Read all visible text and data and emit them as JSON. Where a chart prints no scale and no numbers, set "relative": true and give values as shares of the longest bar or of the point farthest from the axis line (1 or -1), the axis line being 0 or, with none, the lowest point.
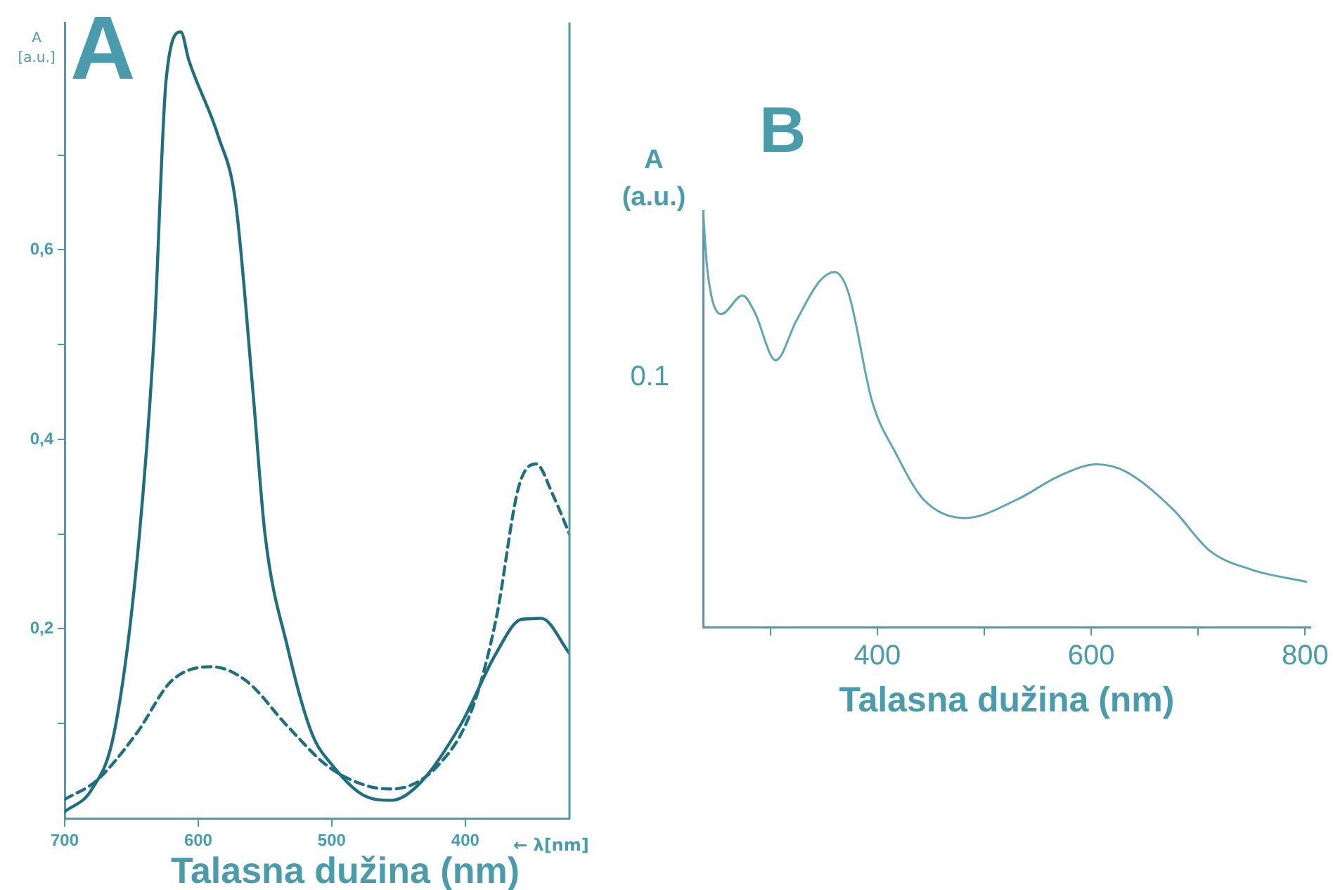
{
  "chart_data": [
    {
      "type": "line",
      "title": "A",
      "xlabel": "Talasna dužina (nm)",
      "ylabel": "A [a.u.]",
      "annotations": [
        "← λ[nm]"
      ],
      "xlim": [
        700,
        322
      ],
      "xticks": [
        700,
        600,
        500,
        400
      ],
      "ylim": [
        0,
        0.84
      ],
      "yticks": [
        {
          "value": 0.1,
          "label": null
        },
        {
          "value": 0.2,
          "label": "0,2"
        },
        {
          "value": 0.3,
          "label": null
        },
        {
          "value": 0.4,
          "label": "0,4"
        },
        {
          "value": 0.5,
          "label": null
        },
        {
          "value": 0.6,
          "label": "0,6"
        },
        {
          "value": 0.7,
          "label": null
        }
      ],
      "grid": false,
      "legend": false,
      "marker": "none",
      "series": [
        {
          "color": "#1f6f80",
          "line_style": "solid",
          "x": [
            700,
            680,
            663,
            646,
            633,
            624,
            613,
            607,
            585,
            572,
            559,
            550,
            533,
            515,
            499,
            477,
            455,
            434,
            403,
            377,
            358,
            343,
            322
          ],
          "values": [
            0.007,
            0.03,
            0.09,
            0.27,
            0.51,
            0.78,
            0.83,
            0.8,
            0.72,
            0.65,
            0.45,
            0.3,
            0.18,
            0.09,
            0.055,
            0.025,
            0.019,
            0.037,
            0.1,
            0.174,
            0.21,
            0.211,
            0.174
          ]
        },
        {
          "color": "#1f6f80",
          "line_style": "dashed",
          "x": [
            700,
            676,
            646,
            620,
            590,
            564,
            533,
            503,
            473,
            455,
            421,
            395,
            377,
            360,
            347,
            334,
            322
          ],
          "values": [
            0.02,
            0.04,
            0.09,
            0.145,
            0.16,
            0.145,
            0.097,
            0.055,
            0.034,
            0.031,
            0.055,
            0.115,
            0.21,
            0.35,
            0.374,
            0.34,
            0.3
          ]
        }
      ]
    },
    {
      "type": "line",
      "title": "B",
      "xlabel": "Talasna dužina (nm)",
      "ylabel": "A (a.u.)",
      "annotations": [
        "0.1"
      ],
      "relative": true,
      "xlim": [
        237,
        805
      ],
      "xticks": [
        {
          "value": 300,
          "label": null
        },
        400,
        {
          "value": 500,
          "label": null
        },
        600,
        {
          "value": 700,
          "label": null
        },
        800
      ],
      "grid": false,
      "legend": false,
      "marker": "none",
      "series": [
        {
          "color": "#5fa5b5",
          "line_style": "solid",
          "x": [
            237,
            241,
            254,
            274,
            285,
            305,
            324,
            346,
            360,
            373,
            395,
            417,
            443,
            482,
            531,
            570,
            605,
            632,
            676,
            711,
            750,
            801
          ],
          "values": [
            1.0,
            0.859,
            0.752,
            0.797,
            0.758,
            0.641,
            0.735,
            0.831,
            0.853,
            0.803,
            0.543,
            0.419,
            0.307,
            0.262,
            0.307,
            0.363,
            0.391,
            0.374,
            0.284,
            0.183,
            0.138,
            0.109
          ]
        }
      ]
    }
  ]
}
